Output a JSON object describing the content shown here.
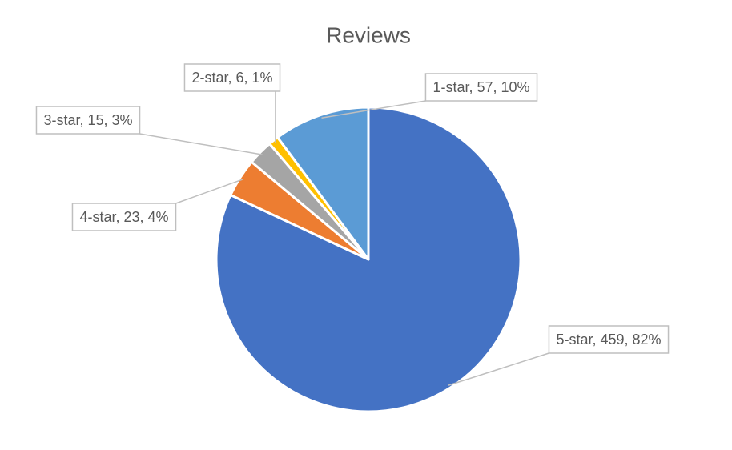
{
  "chart_data": {
    "type": "pie",
    "title": "Reviews",
    "categories": [
      "5-star",
      "4-star",
      "3-star",
      "2-star",
      "1-star"
    ],
    "values": [
      459,
      23,
      15,
      6,
      57
    ],
    "value_labels": [
      "5-star, 459, 82%",
      "4-star, 23, 4%",
      "3-star, 15, 3%",
      "2-star, 6, 1%",
      "1-star, 57, 10%"
    ],
    "colors": [
      "#4472c4",
      "#ed7d31",
      "#a5a5a5",
      "#ffc000",
      "#5b9bd5"
    ]
  }
}
